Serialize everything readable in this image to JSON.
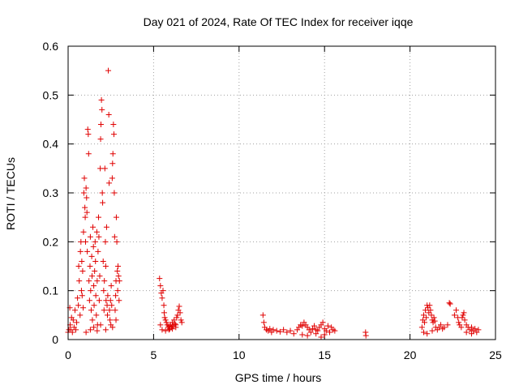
{
  "chart_data": {
    "type": "scatter",
    "title": "Day 021 of 2024, Rate Of TEC Index for receiver iqqe",
    "xlabel": "GPS time / hours",
    "ylabel": "ROTI / TECUs",
    "xlim": [
      0,
      25
    ],
    "ylim": [
      0,
      0.6
    ],
    "grid": true,
    "marker": "plus",
    "color": "#e00000",
    "x_ticks": [
      0,
      5,
      10,
      15,
      20,
      25
    ],
    "x_tick_labels": [
      "0",
      "5",
      "10",
      "15",
      "20",
      "25"
    ],
    "y_ticks": [
      0,
      0.1,
      0.2,
      0.3,
      0.4,
      0.5,
      0.6
    ],
    "y_tick_labels": [
      "0",
      "0.1",
      "0.2",
      "0.3",
      "0.4",
      "0.5",
      "0.6"
    ],
    "series": [
      {
        "name": "ROTI",
        "points": [
          [
            0.0,
            0.015
          ],
          [
            0.05,
            0.02
          ],
          [
            0.1,
            0.065
          ],
          [
            0.12,
            0.03
          ],
          [
            0.15,
            0.02
          ],
          [
            0.2,
            0.045
          ],
          [
            0.25,
            0.015
          ],
          [
            0.3,
            0.04
          ],
          [
            0.35,
            0.025
          ],
          [
            0.4,
            0.06
          ],
          [
            0.45,
            0.02
          ],
          [
            0.5,
            0.035
          ],
          [
            0.55,
            0.085
          ],
          [
            0.6,
            0.07
          ],
          [
            0.62,
            0.15
          ],
          [
            0.65,
            0.12
          ],
          [
            0.7,
            0.05
          ],
          [
            0.72,
            0.18
          ],
          [
            0.75,
            0.2
          ],
          [
            0.78,
            0.1
          ],
          [
            0.8,
            0.16
          ],
          [
            0.82,
            0.09
          ],
          [
            0.85,
            0.14
          ],
          [
            0.88,
            0.065
          ],
          [
            0.9,
            0.22
          ],
          [
            0.92,
            0.3
          ],
          [
            0.95,
            0.33
          ],
          [
            0.98,
            0.27
          ],
          [
            1.0,
            0.25
          ],
          [
            1.02,
            0.2
          ],
          [
            1.05,
            0.31
          ],
          [
            1.08,
            0.29
          ],
          [
            1.1,
            0.26
          ],
          [
            1.12,
            0.18
          ],
          [
            1.15,
            0.43
          ],
          [
            1.18,
            0.42
          ],
          [
            1.2,
            0.38
          ],
          [
            1.22,
            0.12
          ],
          [
            1.25,
            0.08
          ],
          [
            1.28,
            0.15
          ],
          [
            1.3,
            0.21
          ],
          [
            1.32,
            0.1
          ],
          [
            1.35,
            0.06
          ],
          [
            1.38,
            0.17
          ],
          [
            1.4,
            0.13
          ],
          [
            1.42,
            0.04
          ],
          [
            1.45,
            0.23
          ],
          [
            1.48,
            0.19
          ],
          [
            1.5,
            0.11
          ],
          [
            1.52,
            0.07
          ],
          [
            1.55,
            0.14
          ],
          [
            1.58,
            0.2
          ],
          [
            1.6,
            0.16
          ],
          [
            1.62,
            0.09
          ],
          [
            1.65,
            0.05
          ],
          [
            1.68,
            0.22
          ],
          [
            1.7,
            0.12
          ],
          [
            1.72,
            0.03
          ],
          [
            1.75,
            0.18
          ],
          [
            1.78,
            0.25
          ],
          [
            1.8,
            0.21
          ],
          [
            1.82,
            0.08
          ],
          [
            1.85,
            0.13
          ],
          [
            1.88,
            0.35
          ],
          [
            1.9,
            0.41
          ],
          [
            1.92,
            0.44
          ],
          [
            1.95,
            0.49
          ],
          [
            1.98,
            0.47
          ],
          [
            2.0,
            0.3
          ],
          [
            2.02,
            0.28
          ],
          [
            2.05,
            0.16
          ],
          [
            2.08,
            0.1
          ],
          [
            2.1,
            0.06
          ],
          [
            2.12,
            0.12
          ],
          [
            2.15,
            0.35
          ],
          [
            2.18,
            0.2
          ],
          [
            2.2,
            0.15
          ],
          [
            2.22,
            0.08
          ],
          [
            2.25,
            0.23
          ],
          [
            2.28,
            0.07
          ],
          [
            2.3,
            0.05
          ],
          [
            2.32,
            0.09
          ],
          [
            2.35,
            0.55
          ],
          [
            2.38,
            0.46
          ],
          [
            2.4,
            0.32
          ],
          [
            2.42,
            0.06
          ],
          [
            2.45,
            0.04
          ],
          [
            2.48,
            0.08
          ],
          [
            2.5,
            0.03
          ],
          [
            2.52,
            0.11
          ],
          [
            2.55,
            0.07
          ],
          [
            2.58,
            0.33
          ],
          [
            2.6,
            0.36
          ],
          [
            2.62,
            0.38
          ],
          [
            2.65,
            0.44
          ],
          [
            2.68,
            0.42
          ],
          [
            2.7,
            0.3
          ],
          [
            2.72,
            0.21
          ],
          [
            2.75,
            0.06
          ],
          [
            2.78,
            0.09
          ],
          [
            2.8,
            0.12
          ],
          [
            2.82,
            0.25
          ],
          [
            2.85,
            0.2
          ],
          [
            2.88,
            0.14
          ],
          [
            2.9,
            0.1
          ],
          [
            2.92,
            0.15
          ],
          [
            2.95,
            0.13
          ],
          [
            2.98,
            0.08
          ],
          [
            3.0,
            0.12
          ],
          [
            1.05,
            0.015
          ],
          [
            1.3,
            0.02
          ],
          [
            1.5,
            0.025
          ],
          [
            1.7,
            0.018
          ],
          [
            1.9,
            0.03
          ],
          [
            2.2,
            0.02
          ],
          [
            2.6,
            0.025
          ],
          [
            2.8,
            0.04
          ],
          [
            5.35,
            0.125
          ],
          [
            5.4,
            0.11
          ],
          [
            5.45,
            0.095
          ],
          [
            5.5,
            0.085
          ],
          [
            5.55,
            0.1
          ],
          [
            5.6,
            0.07
          ],
          [
            5.62,
            0.055
          ],
          [
            5.65,
            0.045
          ],
          [
            5.7,
            0.04
          ],
          [
            5.75,
            0.035
          ],
          [
            5.8,
            0.03
          ],
          [
            5.85,
            0.025
          ],
          [
            5.9,
            0.028
          ],
          [
            5.95,
            0.022
          ],
          [
            6.0,
            0.03
          ],
          [
            6.05,
            0.025
          ],
          [
            6.1,
            0.035
          ],
          [
            6.15,
            0.028
          ],
          [
            6.2,
            0.04
          ],
          [
            6.25,
            0.032
          ],
          [
            6.3,
            0.03
          ],
          [
            6.35,
            0.045
          ],
          [
            6.4,
            0.05
          ],
          [
            6.45,
            0.06
          ],
          [
            6.5,
            0.068
          ],
          [
            6.55,
            0.055
          ],
          [
            6.6,
            0.04
          ],
          [
            6.65,
            0.035
          ],
          [
            5.4,
            0.03
          ],
          [
            5.5,
            0.02
          ],
          [
            5.7,
            0.018
          ],
          [
            5.9,
            0.02
          ],
          [
            6.1,
            0.022
          ],
          [
            6.3,
            0.025
          ],
          [
            11.4,
            0.05
          ],
          [
            11.45,
            0.035
          ],
          [
            11.5,
            0.025
          ],
          [
            11.6,
            0.02
          ],
          [
            11.7,
            0.018
          ],
          [
            11.8,
            0.022
          ],
          [
            11.9,
            0.015
          ],
          [
            12.0,
            0.02
          ],
          [
            12.2,
            0.018
          ],
          [
            12.4,
            0.016
          ],
          [
            12.6,
            0.02
          ],
          [
            12.8,
            0.015
          ],
          [
            13.0,
            0.018
          ],
          [
            13.2,
            0.012
          ],
          [
            13.4,
            0.02
          ],
          [
            13.5,
            0.025
          ],
          [
            13.6,
            0.03
          ],
          [
            13.7,
            0.028
          ],
          [
            13.8,
            0.035
          ],
          [
            13.9,
            0.03
          ],
          [
            14.0,
            0.025
          ],
          [
            14.1,
            0.02
          ],
          [
            14.2,
            0.015
          ],
          [
            14.3,
            0.022
          ],
          [
            14.4,
            0.028
          ],
          [
            14.5,
            0.02
          ],
          [
            14.6,
            0.018
          ],
          [
            14.7,
            0.025
          ],
          [
            14.8,
            0.03
          ],
          [
            14.9,
            0.035
          ],
          [
            15.0,
            0.022
          ],
          [
            15.1,
            0.018
          ],
          [
            15.2,
            0.028
          ],
          [
            15.3,
            0.015
          ],
          [
            15.4,
            0.025
          ],
          [
            15.5,
            0.02
          ],
          [
            15.6,
            0.018
          ],
          [
            13.7,
            0.01
          ],
          [
            14.0,
            0.008
          ],
          [
            14.5,
            0.012
          ],
          [
            15.0,
            0.01
          ],
          [
            14.8,
            0.005
          ],
          [
            17.4,
            0.015
          ],
          [
            17.42,
            0.008
          ],
          [
            20.7,
            0.025
          ],
          [
            20.75,
            0.04
          ],
          [
            20.8,
            0.05
          ],
          [
            20.85,
            0.035
          ],
          [
            20.9,
            0.06
          ],
          [
            20.95,
            0.045
          ],
          [
            21.0,
            0.07
          ],
          [
            21.05,
            0.065
          ],
          [
            21.1,
            0.055
          ],
          [
            21.15,
            0.07
          ],
          [
            21.2,
            0.06
          ],
          [
            21.25,
            0.05
          ],
          [
            21.3,
            0.04
          ],
          [
            21.35,
            0.035
          ],
          [
            21.4,
            0.045
          ],
          [
            21.45,
            0.038
          ],
          [
            21.5,
            0.025
          ],
          [
            21.6,
            0.02
          ],
          [
            21.7,
            0.025
          ],
          [
            21.8,
            0.03
          ],
          [
            21.9,
            0.022
          ],
          [
            22.0,
            0.025
          ],
          [
            22.2,
            0.03
          ],
          [
            22.3,
            0.075
          ],
          [
            22.35,
            0.073
          ],
          [
            22.6,
            0.05
          ],
          [
            22.7,
            0.06
          ],
          [
            22.8,
            0.045
          ],
          [
            22.85,
            0.035
          ],
          [
            22.9,
            0.03
          ],
          [
            23.0,
            0.025
          ],
          [
            23.05,
            0.045
          ],
          [
            23.1,
            0.05
          ],
          [
            23.15,
            0.055
          ],
          [
            23.2,
            0.04
          ],
          [
            23.3,
            0.03
          ],
          [
            23.4,
            0.025
          ],
          [
            23.5,
            0.02
          ],
          [
            23.6,
            0.025
          ],
          [
            23.7,
            0.018
          ],
          [
            23.8,
            0.022
          ],
          [
            23.9,
            0.015
          ],
          [
            24.0,
            0.02
          ],
          [
            20.8,
            0.015
          ],
          [
            21.0,
            0.012
          ],
          [
            21.3,
            0.018
          ],
          [
            23.3,
            0.015
          ],
          [
            23.6,
            0.012
          ]
        ]
      }
    ]
  }
}
